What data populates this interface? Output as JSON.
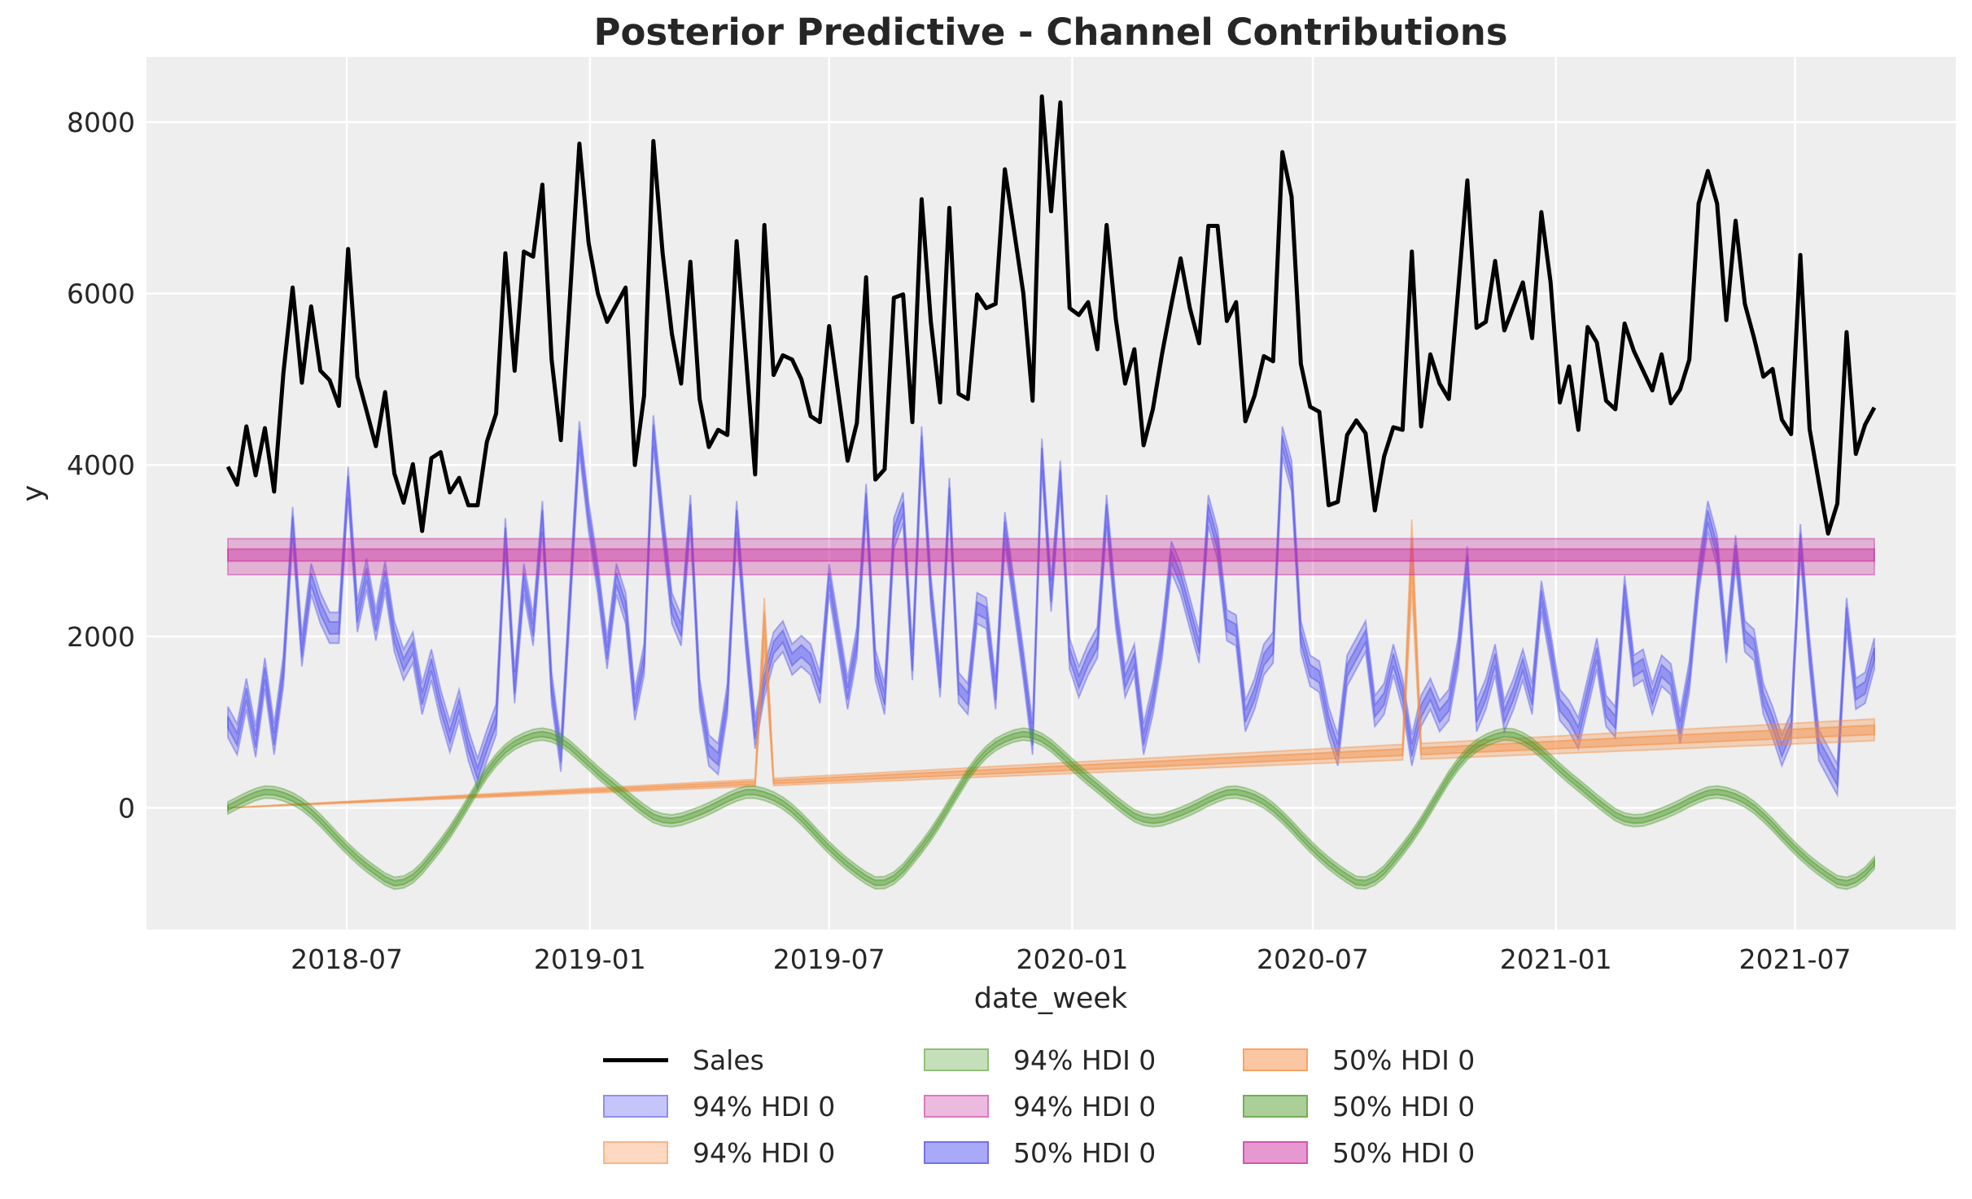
{
  "chart_data": {
    "type": "line",
    "title": "Posterior Predictive - Channel Contributions",
    "xlabel": "date_week",
    "ylabel": "y",
    "ylim": [
      -1420,
      8760
    ],
    "yticks": [
      "0",
      "2000",
      "4000",
      "6000",
      "8000"
    ],
    "xticks": [
      "2018-07",
      "2019-01",
      "2019-07",
      "2020-01",
      "2020-07",
      "2021-01",
      "2021-07"
    ],
    "x_start": "2018-04-02",
    "x_end": "2021-08-30",
    "x_frequency": "weekly",
    "grid": true,
    "background": "#eeeeee",
    "legend_placement": "bottom-center",
    "legend": [
      "Sales",
      "94% HDI 0",
      "94% HDI 0",
      "94% HDI 0",
      "94% HDI 0",
      "50% HDI 0",
      "50% HDI 0",
      "50% HDI 0",
      "50% HDI 0"
    ],
    "sales": {
      "name": "Sales",
      "color": "#000000",
      "values": [
        3980,
        3770,
        4450,
        3880,
        4430,
        3690,
        5070,
        6070,
        4960,
        5850,
        5100,
        4990,
        4690,
        6520,
        5030,
        4630,
        4220,
        4850,
        3900,
        3560,
        4010,
        3230,
        4080,
        4150,
        3680,
        3850,
        3530,
        3530,
        4270,
        4600,
        6470,
        5100,
        6490,
        6430,
        7270,
        5230,
        4290,
        6000,
        7750,
        6590,
        6000,
        5670,
        5870,
        6070,
        4000,
        4810,
        7780,
        6470,
        5530,
        4950,
        6370,
        4770,
        4210,
        4410,
        4350,
        6610,
        5270,
        3890,
        6800,
        5050,
        5280,
        5230,
        5000,
        4570,
        4500,
        5620,
        4830,
        4050,
        4490,
        6190,
        3830,
        3950,
        5950,
        5990,
        4500,
        7100,
        5670,
        4730,
        7000,
        4830,
        4770,
        5990,
        5830,
        5880,
        7450,
        6730,
        6000,
        4750,
        8300,
        6960,
        8230,
        5830,
        5750,
        5900,
        5350,
        6800,
        5700,
        4950,
        5350,
        4230,
        4650,
        5300,
        5870,
        6410,
        5830,
        5420,
        6790,
        6790,
        5680,
        5900,
        4510,
        4810,
        5270,
        5210,
        7650,
        7130,
        5180,
        4680,
        4620,
        3530,
        3570,
        4350,
        4520,
        4370,
        3470,
        4100,
        4440,
        4410,
        6490,
        4450,
        5290,
        4950,
        4770,
        6030,
        7320,
        5600,
        5670,
        6380,
        5570,
        5850,
        6130,
        5480,
        6950,
        6130,
        4730,
        5150,
        4410,
        5610,
        5430,
        4750,
        4650,
        5650,
        5330,
        5100,
        4870,
        5290,
        4720,
        4880,
        5230,
        7050,
        7430,
        7050,
        5690,
        6850,
        5880,
        5480,
        5030,
        5120,
        4530,
        4360,
        6450,
        4420,
        3800,
        3200,
        3550,
        5550,
        4130,
        4470,
        4670
      ]
    },
    "channel_blue": {
      "color": "#4b4bf0",
      "hdi_94_halfwidth": 180,
      "hdi_50_halfwidth": 70,
      "mean": [
        1000,
        800,
        1330,
        770,
        1570,
        800,
        1600,
        3330,
        1830,
        2670,
        2330,
        2100,
        2100,
        3800,
        2230,
        2730,
        2130,
        2700,
        2000,
        1670,
        1870,
        1270,
        1670,
        1200,
        830,
        1200,
        730,
        400,
        730,
        1030,
        3200,
        1400,
        2670,
        2070,
        3400,
        1400,
        600,
        2470,
        4330,
        3400,
        2670,
        1800,
        2670,
        2330,
        1200,
        1730,
        4400,
        3330,
        2330,
        2070,
        3470,
        1330,
        670,
        570,
        1270,
        3400,
        2000,
        870,
        1470,
        1870,
        2000,
        1730,
        1830,
        1730,
        1400,
        2670,
        2000,
        1330,
        1930,
        3600,
        1670,
        1270,
        3200,
        3500,
        1670,
        4270,
        2530,
        1470,
        3670,
        1400,
        1270,
        2330,
        2270,
        1330,
        3270,
        2470,
        1670,
        800,
        4130,
        2470,
        3870,
        1800,
        1470,
        1730,
        1930,
        3470,
        2270,
        1470,
        1730,
        800,
        1270,
        1930,
        2930,
        2670,
        2270,
        1870,
        3470,
        3070,
        2130,
        2070,
        1070,
        1330,
        1730,
        1870,
        4270,
        3870,
        2000,
        1600,
        1530,
        1000,
        670,
        1600,
        1800,
        2000,
        1130,
        1270,
        1730,
        1330,
        670,
        1130,
        1330,
        1070,
        1200,
        1800,
        2870,
        1070,
        1330,
        1730,
        1070,
        1330,
        1670,
        1270,
        2470,
        1870,
        1200,
        1070,
        870,
        1330,
        1800,
        1130,
        1000,
        2530,
        1600,
        1670,
        1270,
        1600,
        1500,
        930,
        1530,
        2670,
        3400,
        3000,
        1870,
        3000,
        2000,
        1900,
        1270,
        1000,
        670,
        930,
        3130,
        1800,
        730,
        530,
        330,
        2270,
        1330,
        1400,
        1800
      ]
    },
    "channel_orange": {
      "color": "#f58a3c",
      "trend_start": 0,
      "trend_end": 910,
      "hdi_94_relative": 0.14,
      "hdi_50_relative": 0.06,
      "spikes": [
        {
          "date": "2019-05-13",
          "value": 2150
        },
        {
          "date": "2020-09-14",
          "value": 2950
        }
      ]
    },
    "seasonality_green": {
      "color": "#4e9a2a",
      "period_weeks": 52.18,
      "profile_step_weeks": 2,
      "profile": [
        0,
        110,
        185,
        150,
        40,
        -150,
        -380,
        -590,
        -760,
        -880,
        -800,
        -560,
        -270,
        80,
        430,
        680,
        810,
        860,
        780,
        600,
        400,
        220,
        40,
        -110,
        -150,
        -90
      ],
      "hdi_94_halfwidth": 70,
      "hdi_50_halfwidth": 30
    },
    "intercept_pink": {
      "color": "#c8299c",
      "mean": 2950,
      "hdi_94": [
        2720,
        3140
      ],
      "hdi_50": [
        2880,
        3020
      ]
    }
  }
}
